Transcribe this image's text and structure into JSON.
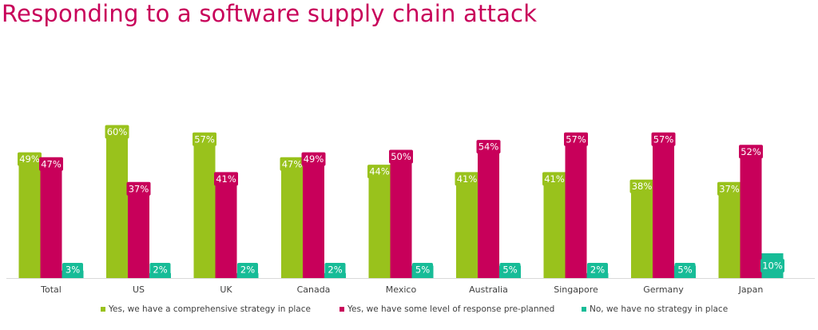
{
  "title": "Responding to a software supply chain attack",
  "colors": {
    "title": "#c8005a",
    "series": [
      "#99c21c",
      "#c8005a",
      "#17bc97"
    ]
  },
  "chart_data": {
    "type": "bar",
    "title": "Responding to a software supply chain attack",
    "xlabel": "",
    "ylabel": "",
    "ylim": [
      0,
      100
    ],
    "grid": false,
    "legend_position": "bottom",
    "value_suffix": "%",
    "categories": [
      "Total",
      "US",
      "UK",
      "Canada",
      "Mexico",
      "Australia",
      "Singapore",
      "Germany",
      "Japan"
    ],
    "series": [
      {
        "name": "Yes, we have a comprehensive strategy in place",
        "color": "#99c21c",
        "values": [
          49,
          60,
          57,
          47,
          44,
          41,
          41,
          38,
          37
        ]
      },
      {
        "name": "Yes, we have some level of response pre-planned",
        "color": "#c8005a",
        "values": [
          47,
          37,
          41,
          49,
          50,
          54,
          57,
          57,
          52
        ]
      },
      {
        "name": "No, we have no strategy in place",
        "color": "#17bc97",
        "values": [
          3,
          2,
          2,
          2,
          5,
          5,
          2,
          5,
          10
        ]
      }
    ]
  }
}
